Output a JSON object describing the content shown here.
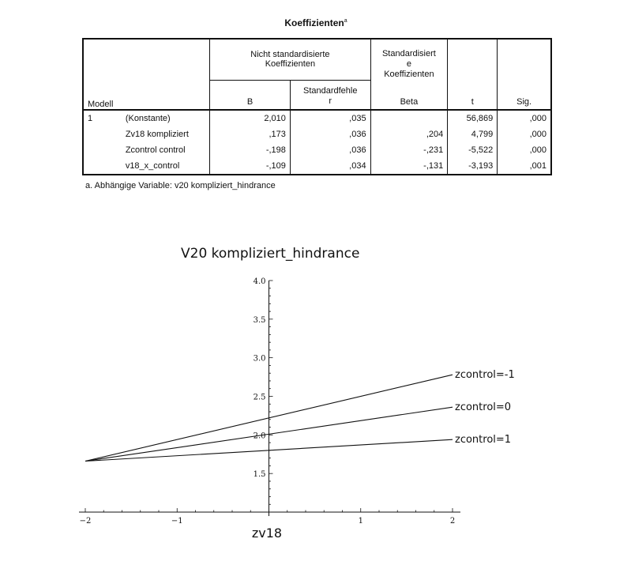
{
  "table": {
    "title": "Koeffizienten",
    "title_sup": "a",
    "header": {
      "modell": "Modell",
      "nicht_std": "Nicht standardisierte Koeffizienten",
      "std_line1": "Standardisiert",
      "std_line2": "e",
      "std_line3": "Koeffizienten",
      "b": "B",
      "se_line1": "Standardfehle",
      "se_line2": "r",
      "beta": "Beta",
      "t": "t",
      "sig": "Sig."
    },
    "model_number": "1",
    "rows": [
      {
        "name": "(Konstante)",
        "b": "2,010",
        "se": ",035",
        "beta": "",
        "t": "56,869",
        "sig": ",000"
      },
      {
        "name": "Zv18 kompliziert",
        "b": ",173",
        "se": ",036",
        "beta": ",204",
        "t": "4,799",
        "sig": ",000"
      },
      {
        "name": "Zcontrol control",
        "b": "-,198",
        "se": ",036",
        "beta": "-,231",
        "t": "-5,522",
        "sig": ",000"
      },
      {
        "name": "v18_x_control",
        "b": "-,109",
        "se": ",034",
        "beta": "-,131",
        "t": "-3,193",
        "sig": ",001"
      }
    ],
    "footnote": "a. Abhängige Variable: v20 kompliziert_hindrance"
  },
  "chart_data": {
    "type": "line",
    "title": "V20 kompliziert_hindrance",
    "xlabel": "zv18",
    "ylabel": "",
    "xlim": [
      -2,
      2
    ],
    "ylim": [
      1.0,
      4.0
    ],
    "x_ticks": [
      {
        "v": -2,
        "label": "−2"
      },
      {
        "v": -1,
        "label": "−1"
      },
      {
        "v": 1,
        "label": "1"
      },
      {
        "v": 2,
        "label": "2"
      }
    ],
    "y_ticks": [
      {
        "v": 1.5,
        "label": "1.5"
      },
      {
        "v": 2.0,
        "label": "2.0"
      },
      {
        "v": 2.5,
        "label": "2.5"
      },
      {
        "v": 3.0,
        "label": "3.0"
      },
      {
        "v": 3.5,
        "label": "3.5"
      },
      {
        "v": 4.0,
        "label": "4.0"
      }
    ],
    "x_axis_at_y": 1.0,
    "grid": false,
    "series": [
      {
        "name": "zcontrol=-1",
        "x": [
          -2,
          2
        ],
        "values": [
          1.66,
          2.78
        ]
      },
      {
        "name": "zcontrol=0",
        "x": [
          -2,
          2
        ],
        "values": [
          1.66,
          2.36
        ]
      },
      {
        "name": "zcontrol=1",
        "x": [
          -2,
          2
        ],
        "values": [
          1.66,
          1.94
        ]
      }
    ]
  }
}
